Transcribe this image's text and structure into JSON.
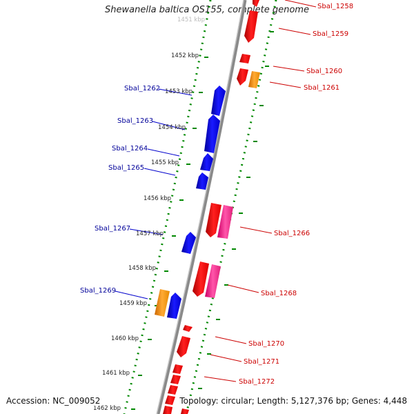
{
  "title": "Shewanella baltica OS155, complete genome",
  "footer": {
    "accession": "Accession: NC_009052",
    "topology": "Topology: circular; Length: 5,127,376 bp; Genes: 4,448"
  },
  "colors": {
    "forward_cds": "#ff0000",
    "reverse_cds": "#0000ff",
    "other_feature": "#ff9900",
    "rna_feature": "#ff3399",
    "backbone": "#888888",
    "tick": "#008800",
    "label_forward": "#cc0000",
    "label_reverse": "#000099"
  },
  "scale_labels": [
    "1451 kbp",
    "1452 kbp",
    "1453 kbp",
    "1454 kbp",
    "1455 kbp",
    "1456 kbp",
    "1457 kbp",
    "1458 kbp",
    "1459 kbp",
    "1460 kbp",
    "1461 kbp",
    "1462 kbp"
  ],
  "reverse_gene_labels": [
    "Sbal_1262",
    "Sbal_1263",
    "Sbal_1264",
    "Sbal_1265",
    "Sbal_1267",
    "Sbal_1269"
  ],
  "forward_gene_labels": [
    "Sbal_1258",
    "Sbal_1259",
    "Sbal_1260",
    "Sbal_1261",
    "Sbal_1266",
    "Sbal_1268",
    "Sbal_1270",
    "Sbal_1271",
    "Sbal_1272"
  ]
}
